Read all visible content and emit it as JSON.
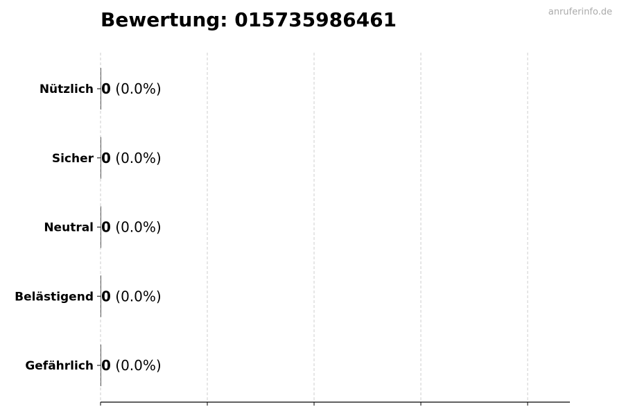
{
  "title": "Bewertung: 015735986461",
  "watermark": "anruferinfo.de",
  "chart_data": {
    "type": "bar",
    "orientation": "horizontal",
    "title": "Bewertung: 015735986461",
    "categories": [
      "Nützlich",
      "Sicher",
      "Neutral",
      "Belästigend",
      "Gefährlich"
    ],
    "values": [
      0,
      0,
      0,
      0,
      0
    ],
    "data_labels": [
      "(0.0%)",
      "(0.0%)",
      "(0.0%)",
      "(0.0%)",
      "(0.0%)"
    ],
    "xlabel": "",
    "ylabel": "",
    "x_ticks": 5,
    "grid": "vertical dashed",
    "legend": "none",
    "colors": {
      "text": "#000000",
      "grid": "#cccccc",
      "watermark": "#aaaaaa"
    }
  }
}
